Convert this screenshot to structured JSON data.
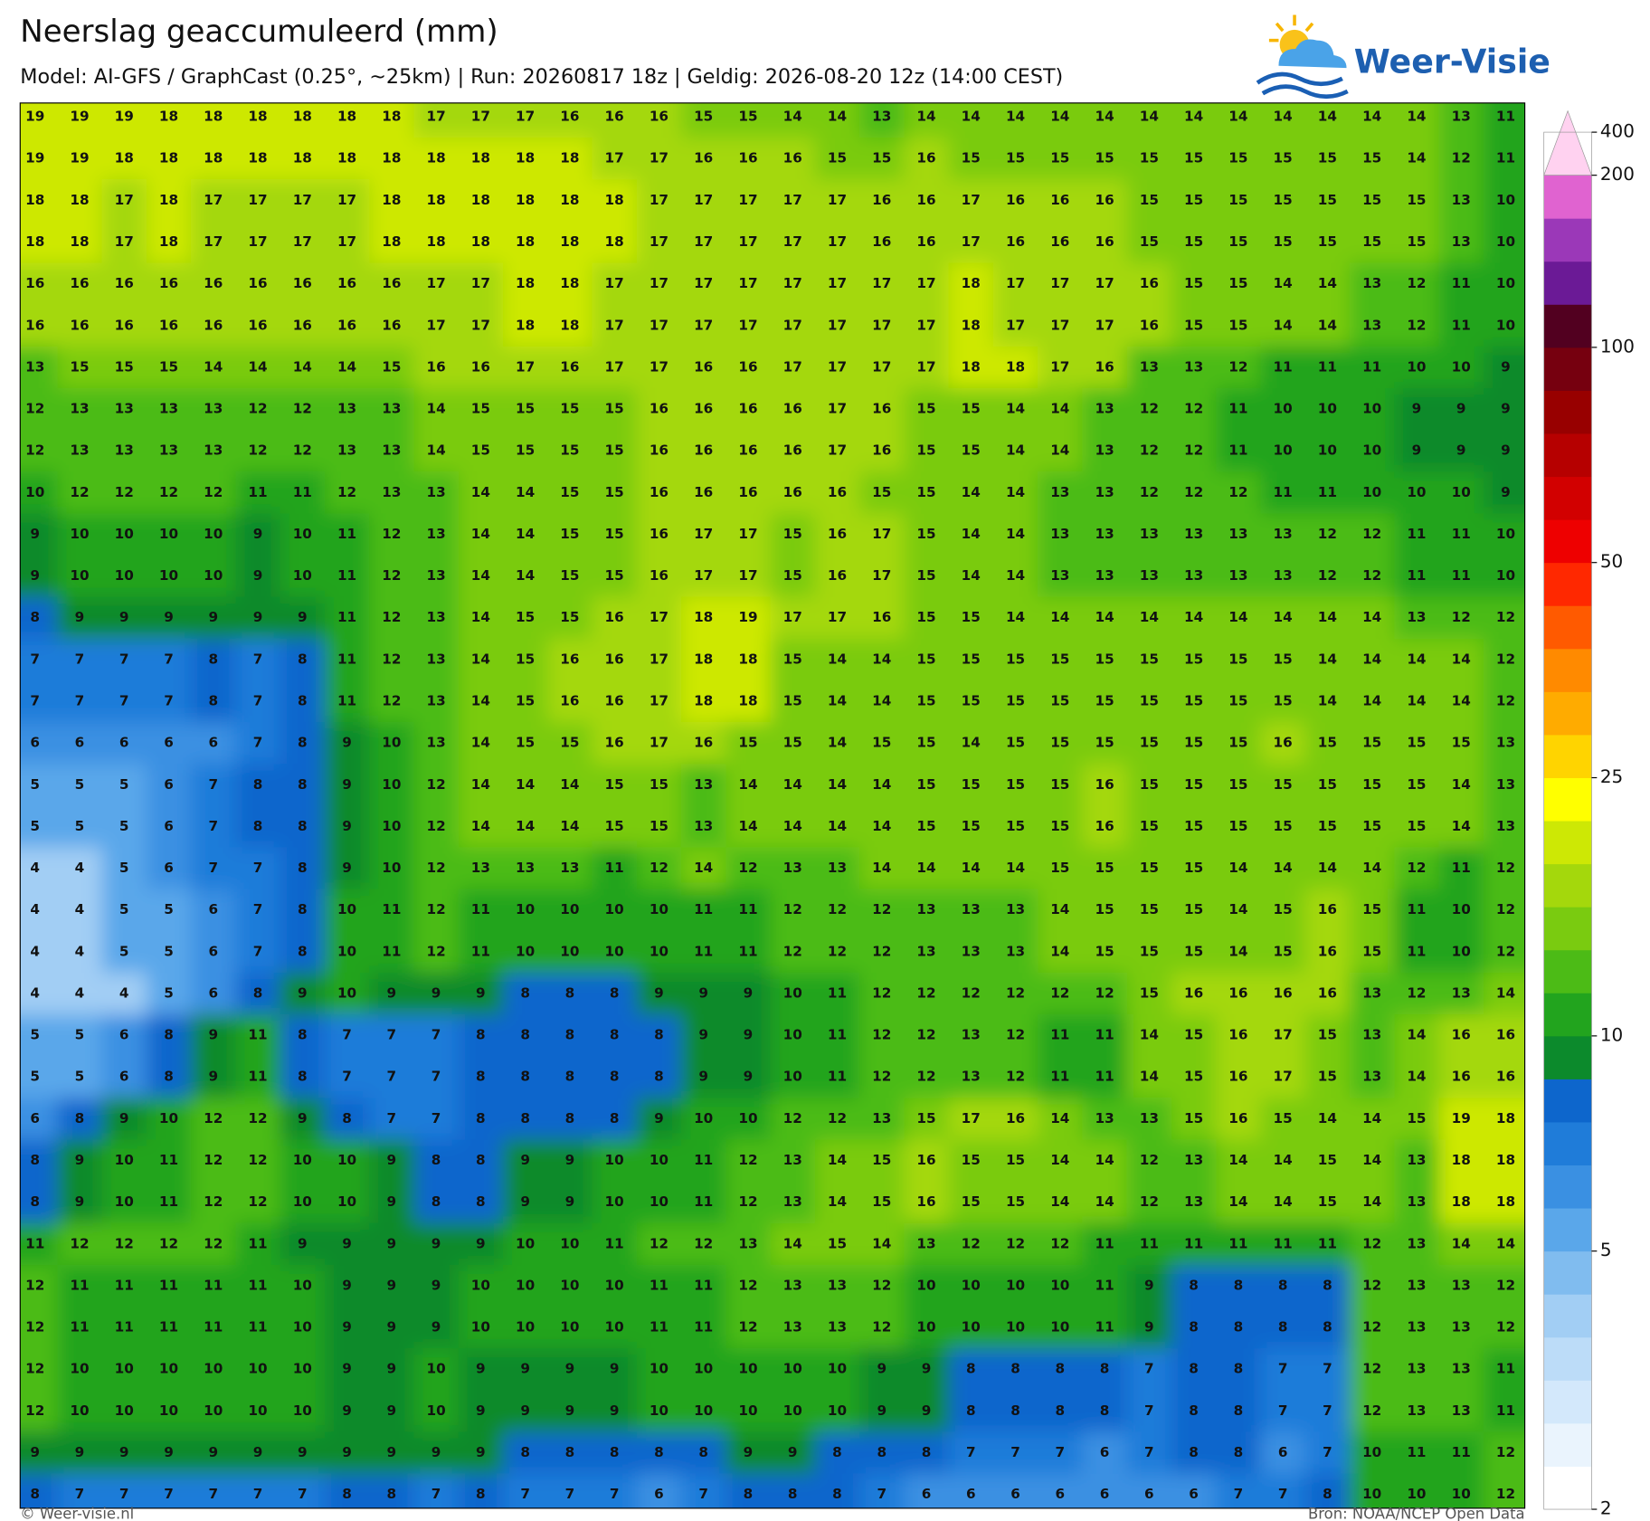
{
  "header": {
    "title": "Neerslag geaccumuleerd (mm)",
    "subtitle": "Model: AI-GFS / GraphCast (0.25°, ~25km)  |  Run: 20260817 18z  |  Geldig: 2026-08-20 12z (14:00 CEST)"
  },
  "logo": {
    "text": "Weer-Visie"
  },
  "map": {
    "values": [
      [
        19,
        19,
        19,
        18,
        18,
        18,
        18,
        18,
        18,
        17,
        17,
        17,
        16,
        16,
        16,
        15,
        15,
        14,
        14,
        13,
        14,
        14,
        14,
        14,
        14,
        14,
        14,
        14,
        14,
        14,
        14,
        14,
        13,
        11
      ],
      [
        19,
        19,
        18,
        18,
        18,
        18,
        18,
        18,
        18,
        18,
        18,
        18,
        18,
        17,
        17,
        16,
        16,
        16,
        15,
        15,
        16,
        15,
        15,
        15,
        15,
        15,
        15,
        15,
        15,
        15,
        15,
        14,
        12,
        11
      ],
      [
        18,
        18,
        17,
        18,
        17,
        17,
        17,
        17,
        18,
        18,
        18,
        18,
        18,
        18,
        17,
        17,
        17,
        17,
        17,
        16,
        16,
        17,
        16,
        16,
        16,
        15,
        15,
        15,
        15,
        15,
        15,
        15,
        13,
        10
      ],
      [
        18,
        18,
        17,
        18,
        17,
        17,
        17,
        17,
        18,
        18,
        18,
        18,
        18,
        18,
        17,
        17,
        17,
        17,
        17,
        16,
        16,
        17,
        16,
        16,
        16,
        15,
        15,
        15,
        15,
        15,
        15,
        15,
        13,
        10
      ],
      [
        16,
        16,
        16,
        16,
        16,
        16,
        16,
        16,
        16,
        17,
        17,
        18,
        18,
        17,
        17,
        17,
        17,
        17,
        17,
        17,
        17,
        18,
        17,
        17,
        17,
        16,
        15,
        15,
        14,
        14,
        13,
        12,
        11,
        10
      ],
      [
        16,
        16,
        16,
        16,
        16,
        16,
        16,
        16,
        16,
        17,
        17,
        18,
        18,
        17,
        17,
        17,
        17,
        17,
        17,
        17,
        17,
        18,
        17,
        17,
        17,
        16,
        15,
        15,
        14,
        14,
        13,
        12,
        11,
        10
      ],
      [
        13,
        15,
        15,
        15,
        14,
        14,
        14,
        14,
        15,
        16,
        16,
        17,
        16,
        17,
        17,
        16,
        16,
        17,
        17,
        17,
        17,
        18,
        18,
        17,
        16,
        13,
        13,
        12,
        11,
        11,
        11,
        10,
        10,
        9
      ],
      [
        12,
        13,
        13,
        13,
        13,
        12,
        12,
        13,
        13,
        14,
        15,
        15,
        15,
        15,
        16,
        16,
        16,
        16,
        17,
        16,
        15,
        15,
        14,
        14,
        13,
        12,
        12,
        11,
        10,
        10,
        10,
        9,
        9,
        9
      ],
      [
        12,
        13,
        13,
        13,
        13,
        12,
        12,
        13,
        13,
        14,
        15,
        15,
        15,
        15,
        16,
        16,
        16,
        16,
        17,
        16,
        15,
        15,
        14,
        14,
        13,
        12,
        12,
        11,
        10,
        10,
        10,
        9,
        9,
        9
      ],
      [
        10,
        12,
        12,
        12,
        12,
        11,
        11,
        12,
        13,
        13,
        14,
        14,
        15,
        15,
        16,
        16,
        16,
        16,
        16,
        15,
        15,
        14,
        14,
        13,
        13,
        12,
        12,
        12,
        11,
        11,
        10,
        10,
        10,
        9
      ],
      [
        9,
        10,
        10,
        10,
        10,
        9,
        10,
        11,
        12,
        13,
        14,
        14,
        15,
        15,
        16,
        17,
        17,
        15,
        16,
        17,
        15,
        14,
        14,
        13,
        13,
        13,
        13,
        13,
        13,
        12,
        12,
        11,
        11,
        10
      ],
      [
        9,
        10,
        10,
        10,
        10,
        9,
        10,
        11,
        12,
        13,
        14,
        14,
        15,
        15,
        16,
        17,
        17,
        15,
        16,
        17,
        15,
        14,
        14,
        13,
        13,
        13,
        13,
        13,
        13,
        12,
        12,
        11,
        11,
        10
      ],
      [
        8,
        9,
        9,
        9,
        9,
        9,
        9,
        11,
        12,
        13,
        14,
        15,
        15,
        16,
        17,
        18,
        19,
        17,
        17,
        16,
        15,
        15,
        14,
        14,
        14,
        14,
        14,
        14,
        14,
        14,
        14,
        13,
        12,
        12
      ],
      [
        7,
        7,
        7,
        7,
        8,
        7,
        8,
        11,
        12,
        13,
        14,
        15,
        16,
        16,
        17,
        18,
        18,
        15,
        14,
        14,
        15,
        15,
        15,
        15,
        15,
        15,
        15,
        15,
        15,
        14,
        14,
        14,
        14,
        12
      ],
      [
        7,
        7,
        7,
        7,
        8,
        7,
        8,
        11,
        12,
        13,
        14,
        15,
        16,
        16,
        17,
        18,
        18,
        15,
        14,
        14,
        15,
        15,
        15,
        15,
        15,
        15,
        15,
        15,
        15,
        14,
        14,
        14,
        14,
        12
      ],
      [
        6,
        6,
        6,
        6,
        6,
        7,
        8,
        9,
        10,
        13,
        14,
        15,
        15,
        16,
        17,
        16,
        15,
        15,
        14,
        15,
        15,
        14,
        15,
        15,
        15,
        15,
        15,
        15,
        16,
        15,
        15,
        15,
        15,
        13
      ],
      [
        5,
        5,
        5,
        6,
        7,
        8,
        8,
        9,
        10,
        12,
        14,
        14,
        14,
        15,
        15,
        13,
        14,
        14,
        14,
        14,
        15,
        15,
        15,
        15,
        16,
        15,
        15,
        15,
        15,
        15,
        15,
        15,
        14,
        13
      ],
      [
        5,
        5,
        5,
        6,
        7,
        8,
        8,
        9,
        10,
        12,
        14,
        14,
        14,
        15,
        15,
        13,
        14,
        14,
        14,
        14,
        15,
        15,
        15,
        15,
        16,
        15,
        15,
        15,
        15,
        15,
        15,
        15,
        14,
        13
      ],
      [
        4,
        4,
        5,
        6,
        7,
        7,
        8,
        9,
        10,
        12,
        13,
        13,
        13,
        11,
        12,
        14,
        12,
        13,
        13,
        14,
        14,
        14,
        14,
        15,
        15,
        15,
        15,
        14,
        14,
        14,
        14,
        12,
        11,
        12
      ],
      [
        4,
        4,
        5,
        5,
        6,
        7,
        8,
        10,
        11,
        12,
        11,
        10,
        10,
        10,
        10,
        11,
        11,
        12,
        12,
        12,
        13,
        13,
        13,
        14,
        15,
        15,
        15,
        14,
        15,
        16,
        15,
        11,
        10,
        12
      ],
      [
        4,
        4,
        5,
        5,
        6,
        7,
        8,
        10,
        11,
        12,
        11,
        10,
        10,
        10,
        10,
        11,
        11,
        12,
        12,
        12,
        13,
        13,
        13,
        14,
        15,
        15,
        15,
        14,
        15,
        16,
        15,
        11,
        10,
        12
      ],
      [
        4,
        4,
        4,
        5,
        6,
        8,
        9,
        10,
        9,
        9,
        9,
        8,
        8,
        8,
        9,
        9,
        9,
        10,
        11,
        12,
        12,
        12,
        12,
        12,
        12,
        15,
        16,
        16,
        16,
        16,
        13,
        12,
        13,
        14
      ],
      [
        5,
        5,
        6,
        8,
        9,
        11,
        8,
        7,
        7,
        7,
        8,
        8,
        8,
        8,
        8,
        9,
        9,
        10,
        11,
        12,
        12,
        13,
        12,
        11,
        11,
        14,
        15,
        16,
        17,
        15,
        13,
        14,
        16,
        16
      ],
      [
        5,
        5,
        6,
        8,
        9,
        11,
        8,
        7,
        7,
        7,
        8,
        8,
        8,
        8,
        8,
        9,
        9,
        10,
        11,
        12,
        12,
        13,
        12,
        11,
        11,
        14,
        15,
        16,
        17,
        15,
        13,
        14,
        16,
        16
      ],
      [
        6,
        8,
        9,
        10,
        12,
        12,
        9,
        8,
        7,
        7,
        8,
        8,
        8,
        8,
        9,
        10,
        10,
        12,
        12,
        13,
        15,
        17,
        16,
        14,
        13,
        13,
        15,
        16,
        15,
        14,
        14,
        15,
        19,
        18
      ],
      [
        8,
        9,
        10,
        11,
        12,
        12,
        10,
        10,
        9,
        8,
        8,
        9,
        9,
        10,
        10,
        11,
        12,
        13,
        14,
        15,
        16,
        15,
        15,
        14,
        14,
        12,
        13,
        14,
        14,
        15,
        14,
        13,
        18,
        18
      ],
      [
        8,
        9,
        10,
        11,
        12,
        12,
        10,
        10,
        9,
        8,
        8,
        9,
        9,
        10,
        10,
        11,
        12,
        13,
        14,
        15,
        16,
        15,
        15,
        14,
        14,
        12,
        13,
        14,
        14,
        15,
        14,
        13,
        18,
        18
      ],
      [
        11,
        12,
        12,
        12,
        12,
        11,
        9,
        9,
        9,
        9,
        9,
        10,
        10,
        11,
        12,
        12,
        13,
        14,
        15,
        14,
        13,
        12,
        12,
        12,
        11,
        11,
        11,
        11,
        11,
        11,
        12,
        13,
        14,
        14
      ],
      [
        12,
        11,
        11,
        11,
        11,
        11,
        10,
        9,
        9,
        9,
        10,
        10,
        10,
        10,
        11,
        11,
        12,
        13,
        13,
        12,
        10,
        10,
        10,
        10,
        11,
        9,
        8,
        8,
        8,
        8,
        12,
        13,
        13,
        12
      ],
      [
        12,
        11,
        11,
        11,
        11,
        11,
        10,
        9,
        9,
        9,
        10,
        10,
        10,
        10,
        11,
        11,
        12,
        13,
        13,
        12,
        10,
        10,
        10,
        10,
        11,
        9,
        8,
        8,
        8,
        8,
        12,
        13,
        13,
        12
      ],
      [
        12,
        10,
        10,
        10,
        10,
        10,
        10,
        9,
        9,
        10,
        9,
        9,
        9,
        9,
        10,
        10,
        10,
        10,
        10,
        9,
        9,
        8,
        8,
        8,
        8,
        7,
        8,
        8,
        7,
        7,
        12,
        13,
        13,
        11
      ],
      [
        12,
        10,
        10,
        10,
        10,
        10,
        10,
        9,
        9,
        10,
        9,
        9,
        9,
        9,
        10,
        10,
        10,
        10,
        10,
        9,
        9,
        8,
        8,
        8,
        8,
        7,
        8,
        8,
        7,
        7,
        12,
        13,
        13,
        11
      ],
      [
        9,
        9,
        9,
        9,
        9,
        9,
        9,
        9,
        9,
        9,
        9,
        8,
        8,
        8,
        8,
        8,
        9,
        9,
        8,
        8,
        8,
        7,
        7,
        7,
        6,
        7,
        8,
        8,
        6,
        7,
        10,
        11,
        11,
        12
      ],
      [
        8,
        7,
        7,
        7,
        7,
        7,
        7,
        8,
        8,
        7,
        8,
        7,
        7,
        7,
        6,
        7,
        8,
        8,
        8,
        7,
        6,
        6,
        6,
        6,
        6,
        6,
        6,
        7,
        7,
        8,
        10,
        10,
        10,
        12
      ]
    ]
  },
  "colorbar": {
    "levels": [
      2,
      2.5,
      3,
      3.5,
      4,
      4.5,
      5,
      6,
      7,
      8,
      9,
      10,
      12,
      14,
      16,
      18,
      20,
      25,
      30,
      35,
      40,
      45,
      50,
      60,
      70,
      80,
      90,
      100,
      125,
      150,
      175,
      200,
      400
    ],
    "colors": [
      "#ffffff",
      "#eaf4fd",
      "#d3e8fb",
      "#bcdcf8",
      "#a2cef4",
      "#80bcef",
      "#5aa7ea",
      "#3a90e2",
      "#1f7cd9",
      "#0d66cc",
      "#0c8a2c",
      "#22a41e",
      "#4cbb16",
      "#7acb10",
      "#a4d80c",
      "#cde805",
      "#ffff00",
      "#ffd400",
      "#ffab00",
      "#ff8a00",
      "#ff5a00",
      "#ff2800",
      "#ee0000",
      "#d20000",
      "#b60000",
      "#980000",
      "#76000f",
      "#520020",
      "#6b1a96",
      "#9b38b8",
      "#e063d0",
      "#ffd2f0"
    ],
    "ticks": [
      2,
      5,
      10,
      25,
      50,
      100,
      200,
      400
    ]
  },
  "footer": {
    "left": "© Weer-visie.nl",
    "right": "Bron: NOAA/NCEP Open Data"
  }
}
